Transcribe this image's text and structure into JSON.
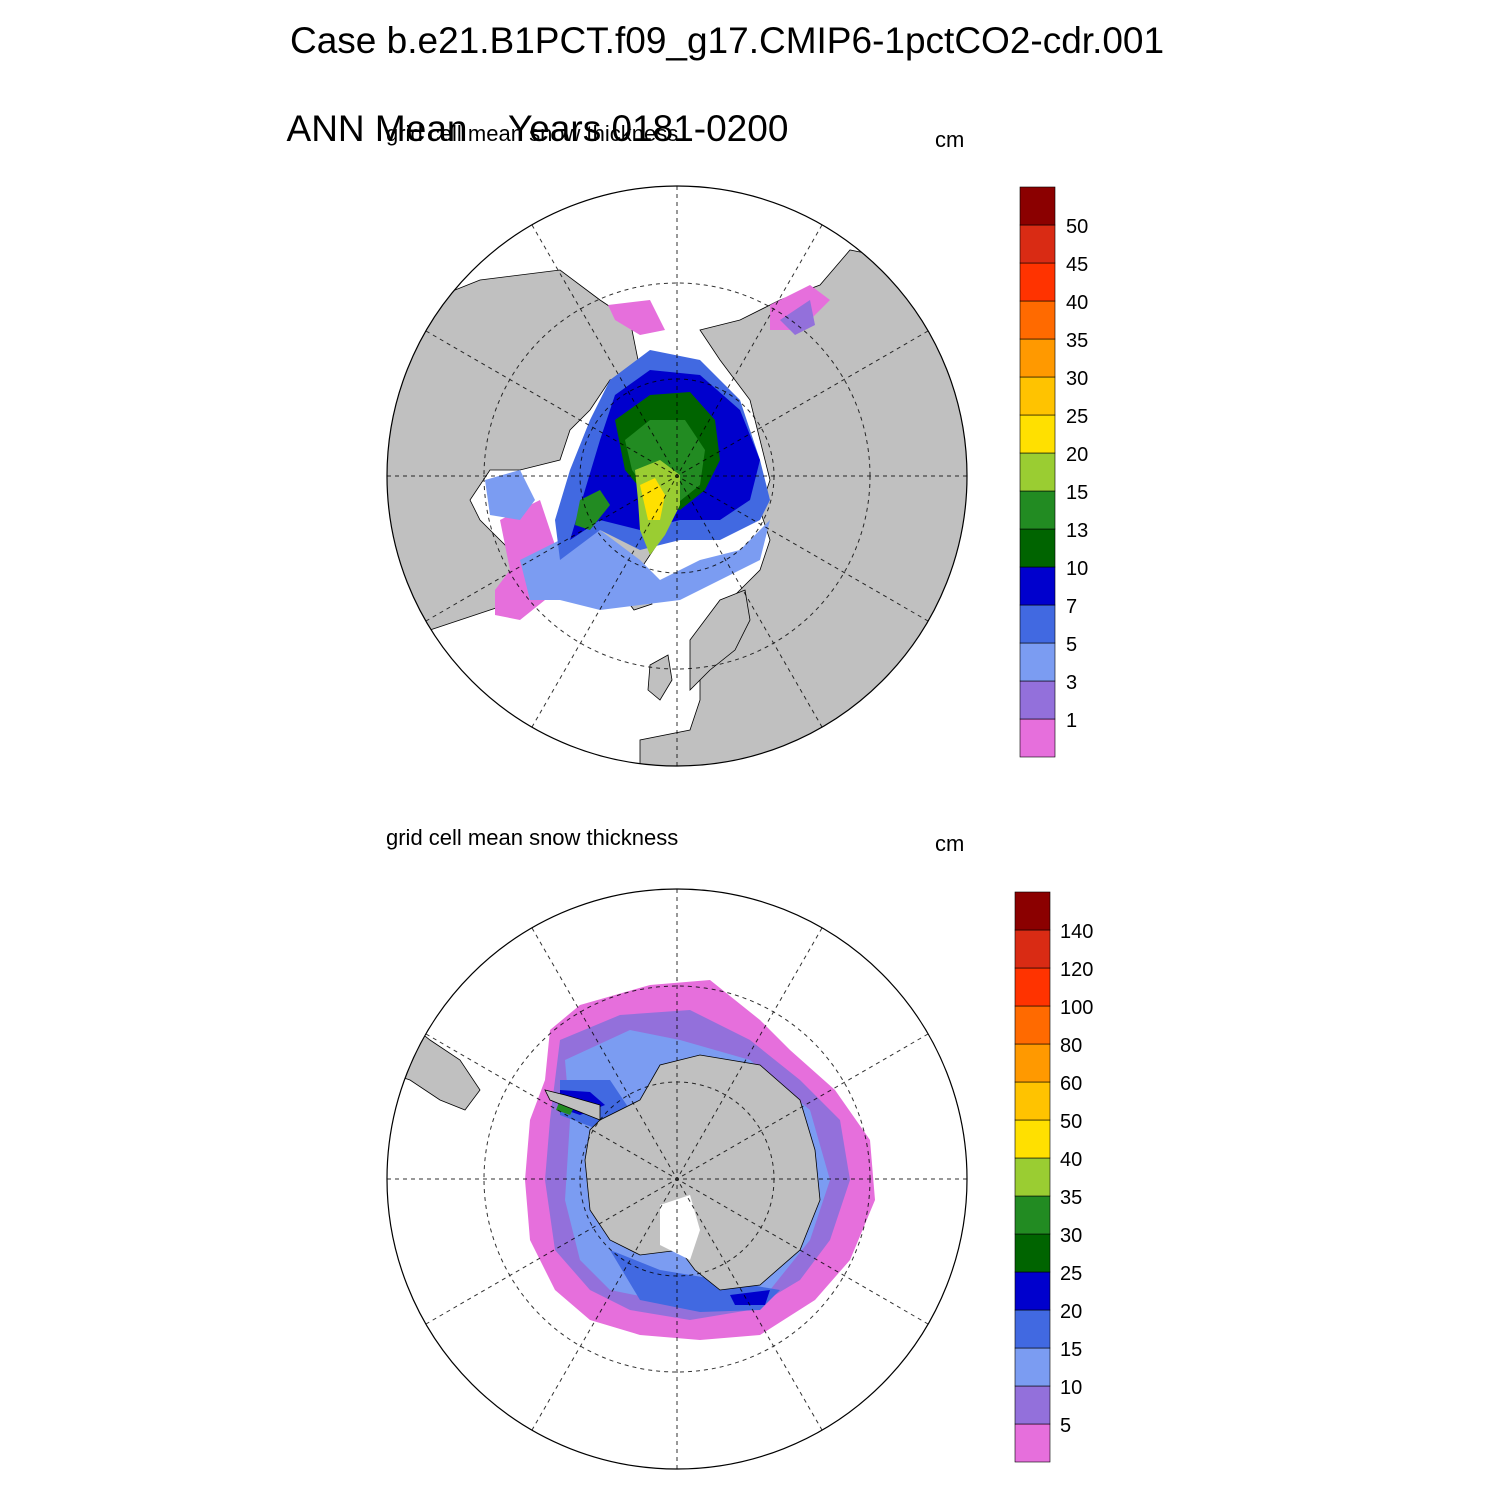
{
  "header": {
    "case_line": "Case b.e21.B1PCT.f09_g17.CMIP6-1pctCO2-cdr.001",
    "period_label": "ANN Mean",
    "years_label": "Years 0181-0200"
  },
  "colors": {
    "land": "#c0c0c0",
    "palette": [
      "#e66fdc",
      "#9370db",
      "#7b9cf2",
      "#4169e1",
      "#0000cd",
      "#006400",
      "#228b22",
      "#9acd32",
      "#ffe000",
      "#ffc300",
      "#ff9900",
      "#ff6a00",
      "#ff3300",
      "#d92b14",
      "#8b0000"
    ]
  },
  "panels": [
    {
      "id": "nh",
      "subtitle": "grid cell mean snow thickness",
      "units": "cm",
      "hemisphere": "north",
      "colorbar_labels": [
        "1",
        "3",
        "5",
        "7",
        "10",
        "13",
        "15",
        "20",
        "25",
        "30",
        "35",
        "40",
        "45",
        "50"
      ]
    },
    {
      "id": "sh",
      "subtitle": "grid cell mean snow thickness",
      "units": "cm",
      "hemisphere": "south",
      "colorbar_labels": [
        "5",
        "10",
        "15",
        "20",
        "25",
        "30",
        "35",
        "40",
        "50",
        "60",
        "80",
        "100",
        "120",
        "140"
      ]
    }
  ]
}
